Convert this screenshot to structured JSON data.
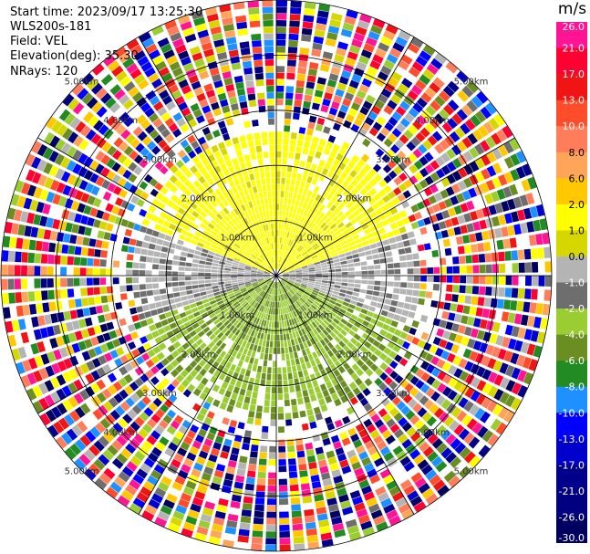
{
  "header": {
    "start_time": "Start time: 2023/09/17 13:25:30",
    "instrument": "WLS200s-181",
    "field": "Field: VEL",
    "elevation": "Elevation(deg): 35.30",
    "nrays": "NRays: 120"
  },
  "chart_data": {
    "type": "heatmap",
    "projection": "polar-ppi",
    "range_rings_km": [
      1,
      2,
      3,
      4,
      5
    ],
    "range_ring_labels": [
      "1.00km",
      "2.00km",
      "3.00km",
      "4.00km",
      "5.00km"
    ],
    "spokes_deg": [
      0,
      30,
      60,
      90,
      120,
      150,
      180,
      210,
      240,
      270,
      300,
      330
    ],
    "nrays": 120,
    "max_range_km": 5.0,
    "colorbar": {
      "label": "m/s",
      "ticks": [
        26.0,
        21.0,
        17.0,
        13.0,
        10.0,
        8.0,
        6.0,
        2.0,
        1.0,
        0.0,
        -1.0,
        -2.0,
        -4.0,
        -6.0,
        -8.0,
        -10.0,
        -13.0,
        -17.0,
        -21.0,
        -26.0,
        -30.0
      ],
      "tick_labels": [
        "26.0",
        "21.0",
        "17.0",
        "13.0",
        "10.0",
        "8.0",
        "6.0",
        "2.0",
        "1.0",
        "0.0",
        "-1.0",
        "-2.0",
        "-4.0",
        "-6.0",
        "-8.0",
        "-10.0",
        "-13.0",
        "-17.0",
        "-21.0",
        "-26.0",
        "-30.0"
      ],
      "colors": [
        "#ff1493",
        "#ff0033",
        "#f01414",
        "#ff4c2a",
        "#ff7d5a",
        "#ffa55a",
        "#ffc800",
        "#ffff00",
        "#d7d700",
        "#b4b4b4",
        "#6e6e6e",
        "#9acd32",
        "#6b8e23",
        "#228b22",
        "#1e90ff",
        "#0000ff",
        "#0000cd",
        "#00008b",
        "#000080",
        "#000060"
      ]
    },
    "pattern": {
      "near_north": "positive (yellow, ~2 m/s)",
      "near_south": "negative (green, -2 to -4 m/s)",
      "east_west": "near zero (gray)",
      "beyond_3km": "noisy, all colors"
    }
  }
}
